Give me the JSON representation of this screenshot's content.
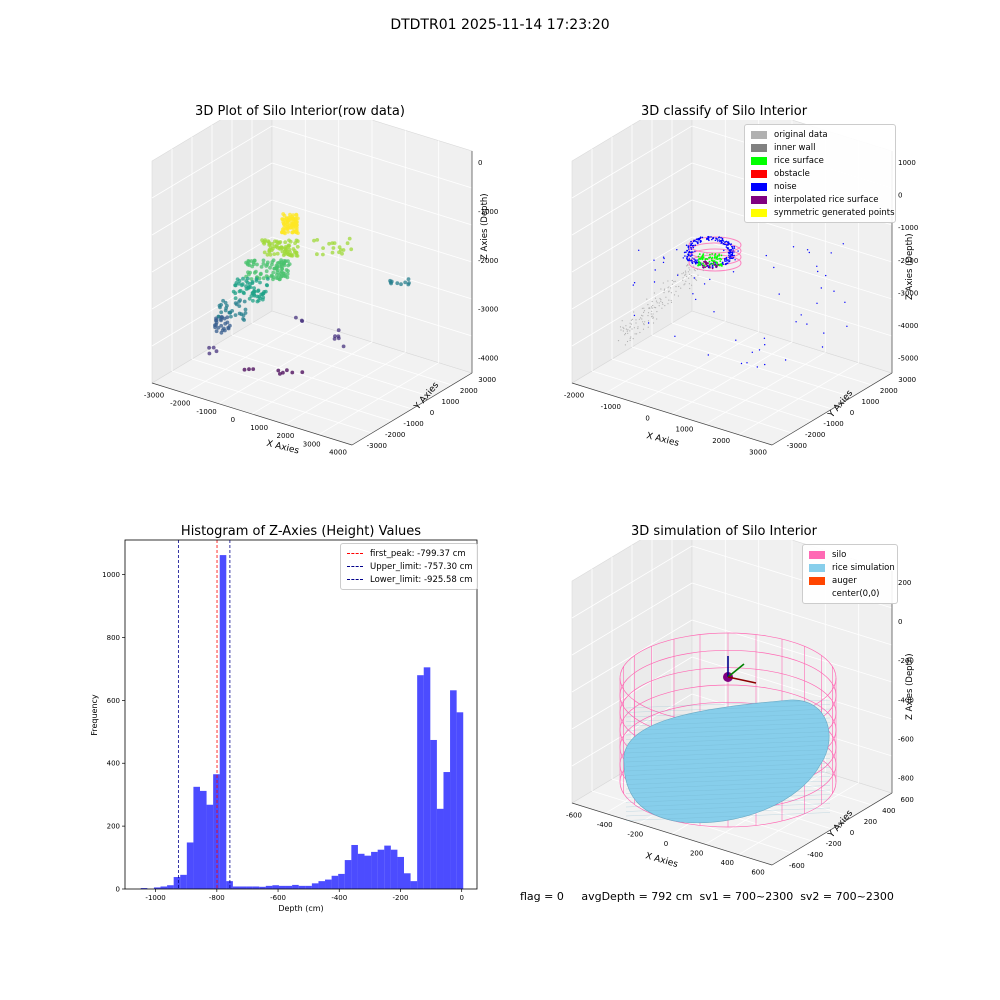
{
  "suptitle": "DTDTR01 2025-11-14 17:23:20",
  "panels": {
    "raw": {
      "title": "3D Plot of Silo Interior(row data)",
      "xlabel": "X Axies",
      "ylabel": "Y Axies",
      "zlabel": "Z Axies (Depth)",
      "xticks": [
        "-3000",
        "-2000",
        "-1000",
        "0",
        "1000",
        "2000",
        "3000",
        "4000"
      ],
      "yticks": [
        "-3000",
        "-2000",
        "-1000",
        "0",
        "1000",
        "2000",
        "3000"
      ],
      "zticks": [
        "0",
        "-1000",
        "-2000",
        "-3000",
        "-4000"
      ]
    },
    "classify": {
      "title": "3D classify of Silo Interior",
      "xlabel": "X Axies",
      "ylabel": "Y Axies",
      "zlabel": "Z Axies (Depth)",
      "xticks": [
        "-2000",
        "-1000",
        "0",
        "1000",
        "2000",
        "3000"
      ],
      "yticks": [
        "-3000",
        "-2000",
        "-1000",
        "0",
        "1000",
        "2000",
        "3000"
      ],
      "zticks": [
        "1000",
        "0",
        "-1000",
        "-2000",
        "-3000",
        "-4000",
        "-5000"
      ],
      "legend": [
        {
          "label": "original data",
          "color": "#b0b0b0"
        },
        {
          "label": "inner wall",
          "color": "#808080"
        },
        {
          "label": "rice surface",
          "color": "#00ff00"
        },
        {
          "label": "obstacle",
          "color": "#ff0000"
        },
        {
          "label": "noise",
          "color": "#0000ff"
        },
        {
          "label": "interpolated rice surface",
          "color": "#800080"
        },
        {
          "label": "symmetric generated points",
          "color": "#ffff00"
        }
      ]
    },
    "simulation": {
      "title": "3D simulation of Silo Interior",
      "xlabel": "X Axies",
      "ylabel": "Y Axies",
      "zlabel": "Z Axies (Depth)",
      "xticks": [
        "-600",
        "-400",
        "-200",
        "0",
        "200",
        "400",
        "600"
      ],
      "yticks": [
        "-600",
        "-400",
        "-200",
        "0",
        "200",
        "400",
        "600"
      ],
      "zticks": [
        "200",
        "0",
        "-200",
        "-400",
        "-600",
        "-800"
      ],
      "legend": [
        {
          "label": "silo",
          "color": "#ff69b4"
        },
        {
          "label": "rice simulation",
          "color": "#87ceeb"
        },
        {
          "label": "auger",
          "color": "#ff4500"
        },
        {
          "label": "center(0,0)",
          "color": ""
        }
      ]
    }
  },
  "chart_data": {
    "type": "bar",
    "title": "Histogram of Z-Axies (Height) Values",
    "xlabel": "Depth (cm)",
    "ylabel": "Frequency",
    "xlim": [
      -1100,
      50
    ],
    "ylim": [
      0,
      1110
    ],
    "xticks": [
      -1000,
      -800,
      -600,
      -400,
      -200,
      0
    ],
    "yticks": [
      0,
      200,
      400,
      600,
      800,
      1000
    ],
    "bin_width": 21.5,
    "bin_start": -1070,
    "color": "#0000ff",
    "values": [
      0,
      3,
      0,
      5,
      8,
      12,
      38,
      45,
      148,
      325,
      312,
      268,
      365,
      1062,
      25,
      8,
      8,
      8,
      8,
      7,
      10,
      12,
      10,
      10,
      13,
      10,
      10,
      18,
      25,
      30,
      42,
      48,
      92,
      140,
      112,
      106,
      118,
      125,
      138,
      125,
      102,
      50,
      25,
      680,
      705,
      474,
      255,
      372,
      632,
      562
    ],
    "lines": [
      {
        "label": "first_peak: -799.37 cm",
        "x": -799.37,
        "color": "#ff0000"
      },
      {
        "label": "Upper_limit: -757.30 cm",
        "x": -757.3,
        "color": "#00008b"
      },
      {
        "label": "Lower_limit: -925.58 cm",
        "x": -925.58,
        "color": "#00008b"
      }
    ],
    "legend_position": "top-right"
  },
  "footer": {
    "text": "flag = 0     avgDepth = 792 cm  sv1 = 700~2300  sv2 = 700~2300"
  }
}
